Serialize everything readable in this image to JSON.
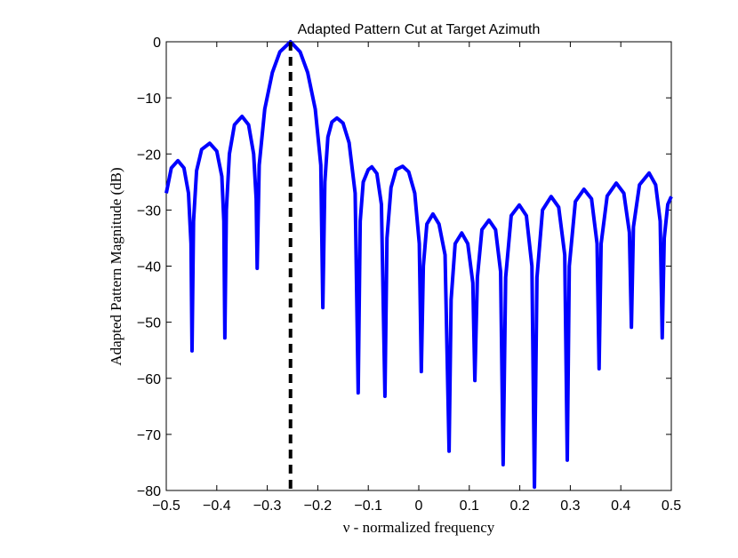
{
  "chart_data": {
    "type": "line",
    "title": "Adapted Pattern Cut at Target Azimuth",
    "xlabel": "ν - normalized frequency",
    "ylabel": "Adapted Pattern Magnitude (dB)",
    "xlim": [
      -0.5,
      0.5
    ],
    "ylim": [
      -80,
      0
    ],
    "xticks": [
      {
        "value": -0.5,
        "label": "−0.5"
      },
      {
        "value": -0.4,
        "label": "−0.4"
      },
      {
        "value": -0.3,
        "label": "−0.3"
      },
      {
        "value": -0.2,
        "label": "−0.2"
      },
      {
        "value": -0.1,
        "label": "−0.1"
      },
      0,
      0.1,
      0.2,
      0.3,
      0.4,
      0.5
    ],
    "yticks": [
      {
        "value": -80,
        "label": "−80"
      },
      {
        "value": -70,
        "label": "−70"
      },
      {
        "value": -60,
        "label": "−60"
      },
      {
        "value": -50,
        "label": "−50"
      },
      {
        "value": -40,
        "label": "−40"
      },
      {
        "value": -30,
        "label": "−30"
      },
      {
        "value": -20,
        "label": "−20"
      },
      {
        "value": -10,
        "label": "−10"
      },
      0
    ],
    "grid": false,
    "target_x": -0.254,
    "target_color": "#000000",
    "x": [
      -0.5,
      -0.49,
      -0.477,
      -0.465,
      -0.456,
      -0.451,
      -0.449,
      -0.446,
      -0.44,
      -0.43,
      -0.414,
      -0.4,
      -0.39,
      -0.386,
      -0.384,
      -0.381,
      -0.375,
      -0.365,
      -0.35,
      -0.337,
      -0.327,
      -0.322,
      -0.32,
      -0.316,
      -0.305,
      -0.29,
      -0.275,
      -0.254,
      -0.235,
      -0.22,
      -0.205,
      -0.194,
      -0.19,
      -0.186,
      -0.18,
      -0.172,
      -0.162,
      -0.15,
      -0.138,
      -0.126,
      -0.12,
      -0.116,
      -0.11,
      -0.1,
      -0.093,
      -0.083,
      -0.074,
      -0.067,
      -0.063,
      -0.055,
      -0.045,
      -0.032,
      -0.02,
      -0.008,
      0.001,
      0.005,
      0.009,
      0.016,
      0.028,
      0.04,
      0.052,
      0.06,
      0.064,
      0.072,
      0.085,
      0.097,
      0.107,
      0.111,
      0.116,
      0.125,
      0.139,
      0.152,
      0.162,
      0.167,
      0.172,
      0.183,
      0.199,
      0.213,
      0.224,
      0.229,
      0.234,
      0.245,
      0.262,
      0.277,
      0.289,
      0.294,
      0.298,
      0.31,
      0.327,
      0.342,
      0.353,
      0.357,
      0.361,
      0.373,
      0.391,
      0.406,
      0.417,
      0.421,
      0.425,
      0.437,
      0.456,
      0.469,
      0.478,
      0.482,
      0.486,
      0.493,
      0.5
    ],
    "series": [
      {
        "color": "#0000ff",
        "values": [
          -27,
          -22.5,
          -21.2,
          -22.5,
          -27,
          -36,
          -55.1,
          -32,
          -23,
          -19.2,
          -18.1,
          -19.5,
          -24,
          -32,
          -52.8,
          -30,
          -20,
          -14.8,
          -13.3,
          -14.8,
          -20,
          -28,
          -40.4,
          -22,
          -12,
          -5.5,
          -1.8,
          0,
          -1.8,
          -5.5,
          -12,
          -22,
          -47.4,
          -25,
          -17,
          -14.3,
          -13.6,
          -14.5,
          -18,
          -27,
          -62.6,
          -32,
          -25,
          -22.8,
          -22.3,
          -23.5,
          -29,
          -63.2,
          -35,
          -26,
          -22.8,
          -22.2,
          -23.2,
          -27,
          -36,
          -58.8,
          -40,
          -32.5,
          -30.7,
          -32.5,
          -38,
          -73,
          -46,
          -36,
          -34.1,
          -36,
          -43,
          -60.4,
          -42,
          -33.5,
          -31.8,
          -33.5,
          -41,
          -75.4,
          -42,
          -31,
          -29.1,
          -31,
          -40,
          -79.4,
          -42,
          -30,
          -27.6,
          -29.5,
          -38,
          -74.6,
          -40,
          -28.5,
          -26.3,
          -28,
          -36,
          -58.3,
          -36,
          -27.5,
          -25.2,
          -27,
          -34,
          -50.9,
          -33,
          -25.5,
          -23.4,
          -25.5,
          -32,
          -52.8,
          -35,
          -29,
          -27.6
        ]
      }
    ]
  }
}
